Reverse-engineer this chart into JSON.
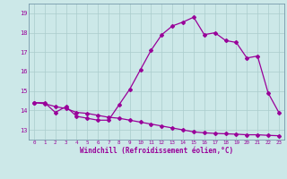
{
  "xlabel": "Windchill (Refroidissement éolien,°C)",
  "background_color": "#cce8e8",
  "grid_color": "#aacccc",
  "line_color": "#990099",
  "spine_color": "#7799aa",
  "ylim": [
    12.5,
    19.5
  ],
  "xlim": [
    -0.5,
    23.5
  ],
  "yticks": [
    13,
    14,
    15,
    16,
    17,
    18,
    19
  ],
  "xticks": [
    0,
    1,
    2,
    3,
    4,
    5,
    6,
    7,
    8,
    9,
    10,
    11,
    12,
    13,
    14,
    15,
    16,
    17,
    18,
    19,
    20,
    21,
    22,
    23
  ],
  "curve1_x": [
    0,
    1,
    2,
    3,
    4,
    5,
    6,
    7,
    8,
    9,
    10,
    11,
    12,
    13,
    14,
    15,
    16,
    17,
    18,
    19,
    20,
    21,
    22,
    23
  ],
  "curve1_y": [
    14.4,
    14.4,
    13.9,
    14.2,
    13.7,
    13.6,
    13.5,
    13.5,
    14.3,
    15.1,
    16.1,
    17.1,
    17.9,
    18.35,
    18.55,
    18.8,
    17.9,
    18.0,
    17.6,
    17.5,
    16.7,
    16.8,
    14.9,
    13.9
  ],
  "curve2_x": [
    0,
    1,
    2,
    3,
    4,
    5,
    6,
    7,
    8,
    9,
    10,
    11,
    12,
    13,
    14,
    15,
    16,
    17,
    18,
    19,
    20,
    21,
    22,
    23
  ],
  "curve2_y": [
    14.4,
    14.35,
    14.2,
    14.1,
    13.9,
    13.85,
    13.75,
    13.65,
    13.6,
    13.5,
    13.4,
    13.3,
    13.2,
    13.1,
    13.0,
    12.9,
    12.85,
    12.82,
    12.8,
    12.78,
    12.75,
    12.75,
    12.72,
    12.7
  ]
}
